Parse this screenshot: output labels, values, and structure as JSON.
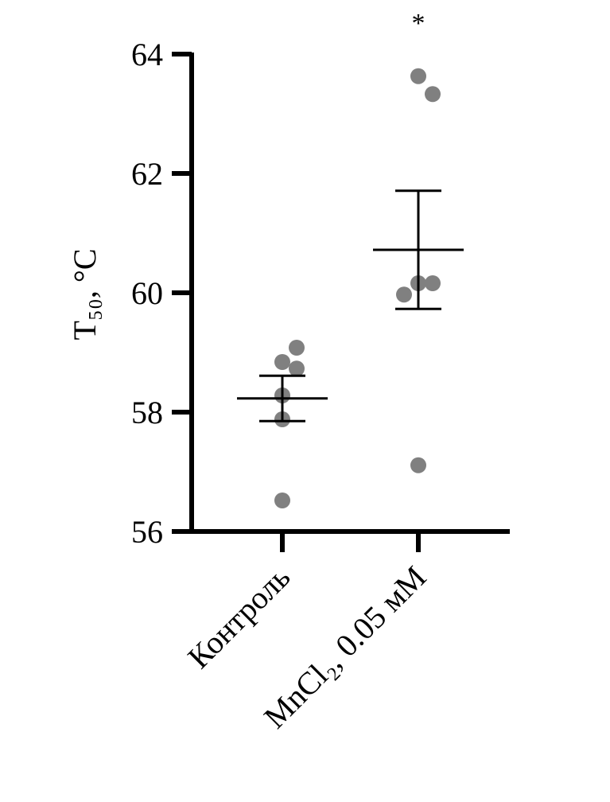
{
  "chart_data": {
    "type": "dot",
    "ylabel": "T₅₀, °C",
    "categories": [
      "Контроль",
      "MnCl₂, 0.05 мМ"
    ],
    "values": [
      [
        58.84,
        59.08,
        58.73,
        58.28,
        57.88,
        56.52
      ],
      [
        63.63,
        63.33,
        60.16,
        60.16,
        59.97,
        57.11
      ]
    ],
    "mean": [
      58.23,
      60.72
    ],
    "sem": [
      0.38,
      0.99
    ],
    "annotation": "*",
    "color": "#808080",
    "ylim": [
      56,
      64
    ],
    "yticks": [
      56,
      58,
      60,
      62,
      64
    ]
  }
}
